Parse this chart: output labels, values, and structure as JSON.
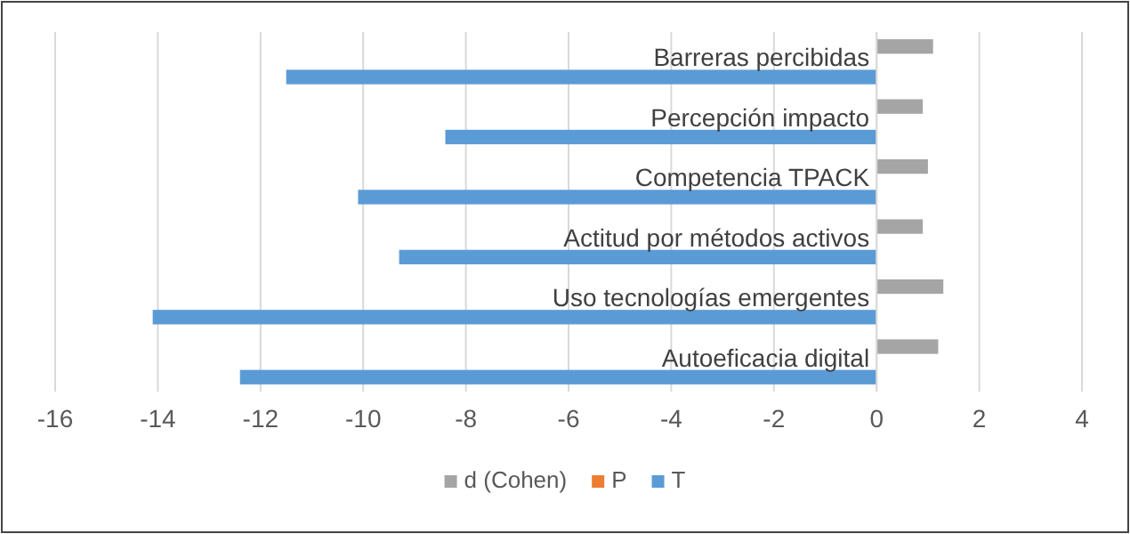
{
  "chart_data": {
    "type": "bar",
    "orientation": "horizontal",
    "categories": [
      "Barreras percibidas",
      "Percepción impacto",
      "Competencia TPACK",
      "Actitud por métodos activos",
      "Uso tecnologías emergentes",
      "Autoeficacia digital"
    ],
    "series": [
      {
        "name": "d (Cohen)",
        "color": "#a5a5a5",
        "values": [
          1.1,
          0.9,
          1.0,
          0.9,
          1.3,
          1.2
        ]
      },
      {
        "name": "P",
        "color": "#ed7d31",
        "values": [
          0,
          0,
          0,
          0,
          0,
          0
        ]
      },
      {
        "name": "T",
        "color": "#5b9bd5",
        "values": [
          -11.5,
          -8.4,
          -10.1,
          -9.3,
          -14.1,
          -12.4
        ]
      }
    ],
    "xlim": [
      -16,
      4
    ],
    "xticks": [
      -16,
      -14,
      -12,
      -10,
      -8,
      -6,
      -4,
      -2,
      0,
      2,
      4
    ],
    "grid": "x",
    "legend": "bottom"
  }
}
